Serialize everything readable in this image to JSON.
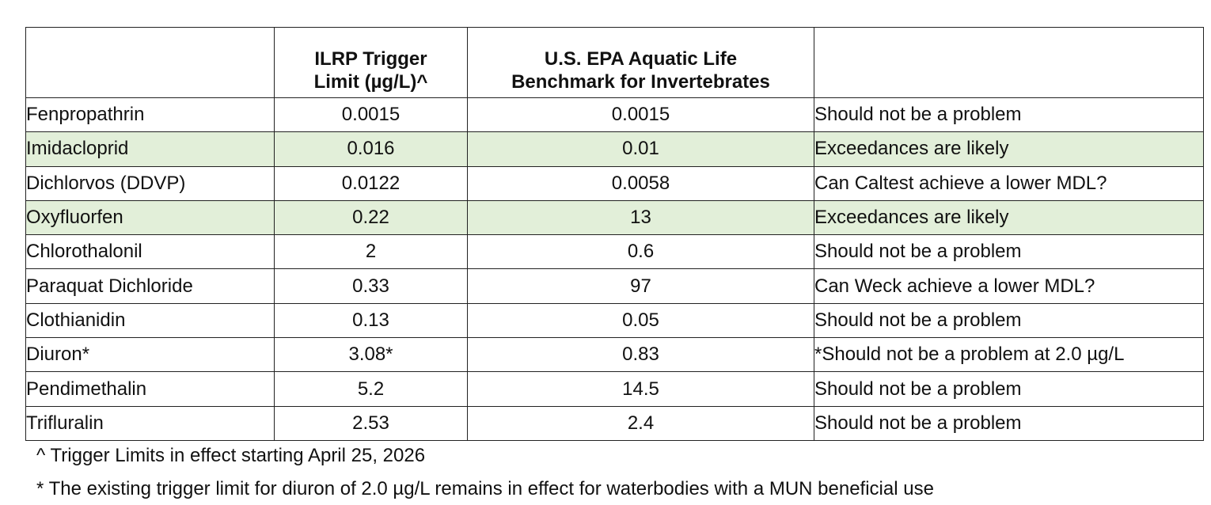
{
  "table": {
    "headers": [
      "",
      "ILRP Trigger\nLimit (µg/L)^",
      "U.S. EPA Aquatic Life\nBenchmark for Invertebrates",
      ""
    ],
    "rows": [
      {
        "name": "Fenpropathrin",
        "ilrp": "0.0015",
        "epa": "0.0015",
        "note": "Should not be a problem",
        "highlight": false
      },
      {
        "name": "Imidacloprid",
        "ilrp": "0.016",
        "epa": "0.01",
        "note": "Exceedances are likely",
        "highlight": true
      },
      {
        "name": "Dichlorvos (DDVP)",
        "ilrp": "0.0122",
        "epa": "0.0058",
        "note": "Can Caltest achieve a lower MDL?",
        "highlight": false
      },
      {
        "name": "Oxyfluorfen",
        "ilrp": "0.22",
        "epa": "13",
        "note": "Exceedances are likely",
        "highlight": true
      },
      {
        "name": "Chlorothalonil",
        "ilrp": "2",
        "epa": "0.6",
        "note": "Should not be a problem",
        "highlight": false
      },
      {
        "name": "Paraquat Dichloride",
        "ilrp": "0.33",
        "epa": "97",
        "note": "Can Weck achieve a lower MDL?",
        "highlight": false
      },
      {
        "name": "Clothianidin",
        "ilrp": "0.13",
        "epa": "0.05",
        "note": "Should not be a problem",
        "highlight": false
      },
      {
        "name": "Diuron*",
        "ilrp": "3.08*",
        "epa": "0.83",
        "note": "*Should not be a problem at 2.0 µg/L",
        "highlight": false
      },
      {
        "name": "Pendimethalin",
        "ilrp": "5.2",
        "epa": "14.5",
        "note": "Should not be a problem",
        "highlight": false
      },
      {
        "name": "Trifluralin",
        "ilrp": "2.53",
        "epa": "2.4",
        "note": "Should not be a problem",
        "highlight": false
      }
    ],
    "highlight_color": "#e2efd9"
  },
  "footnotes": {
    "trigger": "^ Trigger Limits in effect starting April 25, 2026",
    "diuron": "* The existing trigger limit for diuron of 2.0 µg/L remains in effect for waterbodies with a MUN beneficial use"
  }
}
